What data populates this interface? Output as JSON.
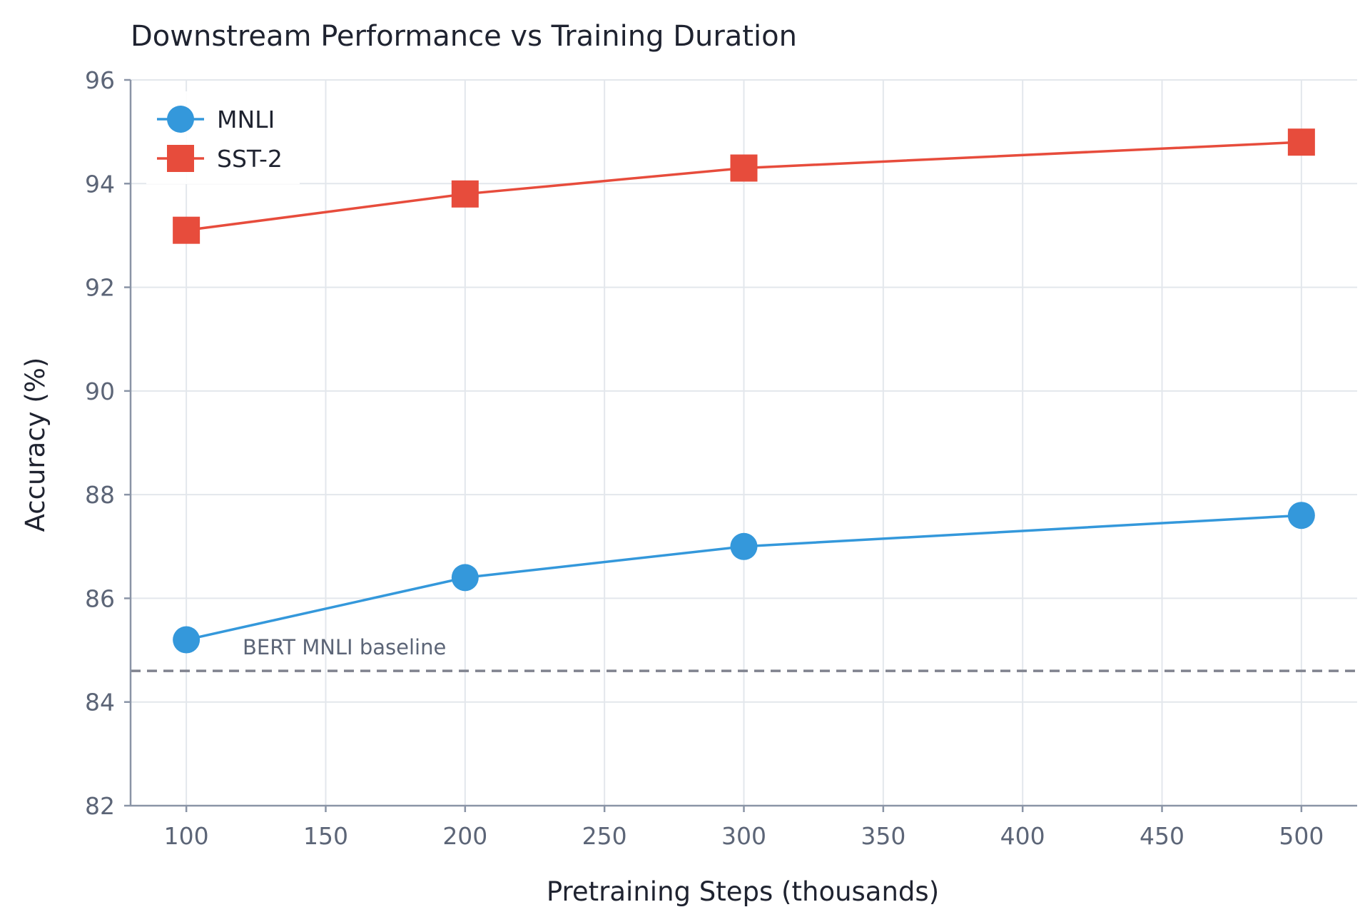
{
  "chart_data": {
    "type": "line",
    "title": "Downstream Performance vs Training Duration",
    "xlabel": "Pretraining Steps (thousands)",
    "ylabel": "Accuracy (%)",
    "xlim": [
      80,
      520
    ],
    "ylim": [
      82,
      96
    ],
    "x_ticks": [
      100,
      150,
      200,
      250,
      300,
      350,
      400,
      450,
      500
    ],
    "y_ticks": [
      82,
      84,
      86,
      88,
      90,
      92,
      94,
      96
    ],
    "grid": true,
    "legend_position": "top-left",
    "series": [
      {
        "name": "MNLI",
        "color": "#3498db",
        "marker": "circle",
        "x": [
          100,
          200,
          300,
          500
        ],
        "y": [
          85.2,
          86.4,
          87.0,
          87.6
        ]
      },
      {
        "name": "SST-2",
        "color": "#e74c3c",
        "marker": "square",
        "x": [
          100,
          200,
          300,
          500
        ],
        "y": [
          93.1,
          93.8,
          94.3,
          94.8
        ]
      }
    ],
    "reference_lines": [
      {
        "label": "BERT MNLI baseline",
        "y": 84.6,
        "style": "dashed",
        "color": "#80838f"
      }
    ]
  }
}
